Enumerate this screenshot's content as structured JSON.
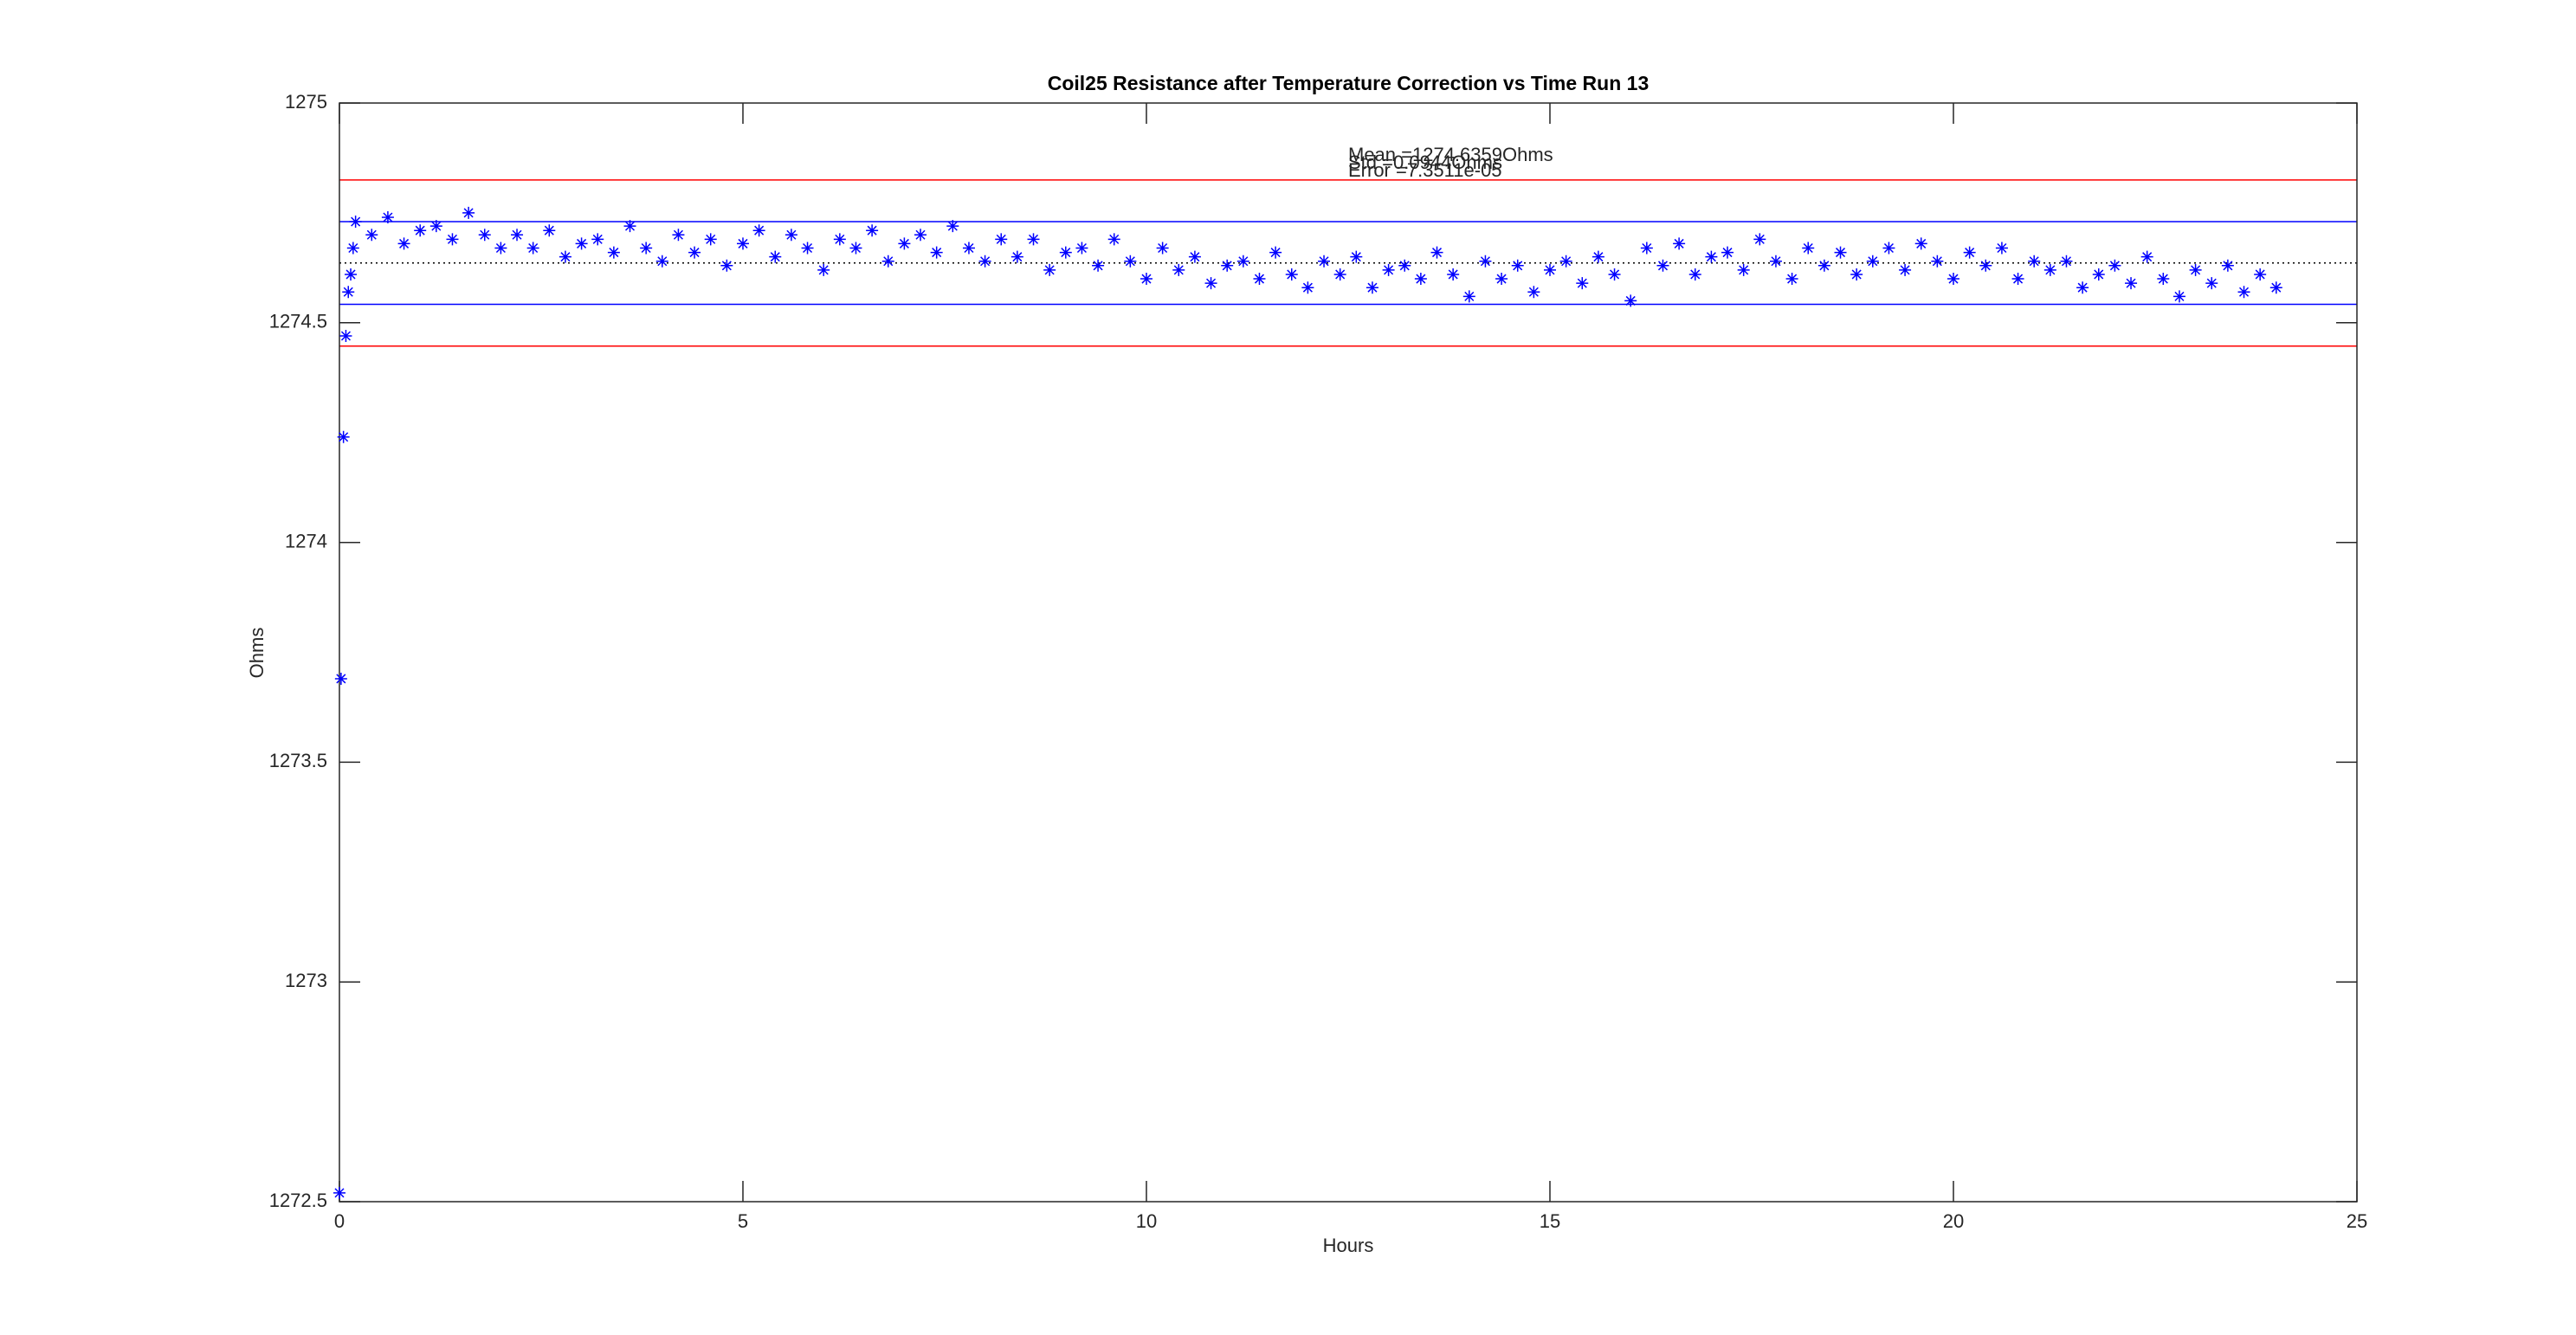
{
  "chart_data": {
    "type": "scatter",
    "title": "Coil25 Resistance after Temperature Correction vs Time Run 13",
    "xlabel": "Hours",
    "ylabel": "Ohms",
    "xlim": [
      0,
      25
    ],
    "xticks": [
      0,
      5,
      10,
      15,
      20,
      25
    ],
    "ylim": [
      1272.5,
      1275
    ],
    "yticks": [
      1272.5,
      1273,
      1273.5,
      1274,
      1274.5,
      1275
    ],
    "annotations": [
      "Mean =1274.6359Ohms",
      "Std =0.0944Ohms",
      "Error =7.3511e-05"
    ],
    "reference_lines": [
      {
        "value": 1274.825,
        "color": "#ff0000",
        "style": "solid"
      },
      {
        "value": 1274.73,
        "color": "#0000ff",
        "style": "solid"
      },
      {
        "value": 1274.636,
        "color": "#000000",
        "style": "dotted"
      },
      {
        "value": 1274.542,
        "color": "#0000ff",
        "style": "solid"
      },
      {
        "value": 1274.447,
        "color": "#ff0000",
        "style": "solid"
      }
    ],
    "series": [
      {
        "color": "#0000ff",
        "x": [
          0,
          0.02,
          0.05,
          0.08,
          0.11,
          0.14,
          0.17,
          0.2,
          0.4,
          0.6,
          0.8,
          1.0,
          1.2,
          1.4,
          1.6,
          1.8,
          2.0,
          2.2,
          2.4,
          2.6,
          2.8,
          3.0,
          3.2,
          3.4,
          3.6,
          3.8,
          4.0,
          4.2,
          4.4,
          4.6,
          4.8,
          5.0,
          5.2,
          5.4,
          5.6,
          5.8,
          6.0,
          6.2,
          6.4,
          6.6,
          6.8,
          7.0,
          7.2,
          7.4,
          7.6,
          7.8,
          8.0,
          8.2,
          8.4,
          8.6,
          8.8,
          9.0,
          9.2,
          9.4,
          9.6,
          9.8,
          10.0,
          10.2,
          10.4,
          10.6,
          10.8,
          11.0,
          11.2,
          11.4,
          11.6,
          11.8,
          12.0,
          12.2,
          12.4,
          12.6,
          12.8,
          13.0,
          13.2,
          13.4,
          13.6,
          13.8,
          14.0,
          14.2,
          14.4,
          14.6,
          14.8,
          15.0,
          15.2,
          15.4,
          15.6,
          15.8,
          16.0,
          16.2,
          16.4,
          16.6,
          16.8,
          17.0,
          17.2,
          17.4,
          17.6,
          17.8,
          18.0,
          18.2,
          18.4,
          18.6,
          18.8,
          19.0,
          19.2,
          19.4,
          19.6,
          19.8,
          20.0,
          20.2,
          20.4,
          20.6,
          20.8,
          21.0,
          21.2,
          21.4,
          21.6,
          21.8,
          22.0,
          22.2,
          22.4,
          22.6,
          22.8,
          23.0,
          23.2,
          23.4,
          23.6,
          23.8,
          24.0
        ],
        "values": [
          1272.52,
          1273.69,
          1274.24,
          1274.47,
          1274.57,
          1274.61,
          1274.67,
          1274.73,
          1274.7,
          1274.74,
          1274.68,
          1274.71,
          1274.72,
          1274.69,
          1274.75,
          1274.7,
          1274.67,
          1274.7,
          1274.67,
          1274.71,
          1274.65,
          1274.68,
          1274.69,
          1274.66,
          1274.72,
          1274.67,
          1274.64,
          1274.7,
          1274.66,
          1274.69,
          1274.63,
          1274.68,
          1274.71,
          1274.65,
          1274.7,
          1274.67,
          1274.62,
          1274.69,
          1274.67,
          1274.71,
          1274.64,
          1274.68,
          1274.7,
          1274.66,
          1274.72,
          1274.67,
          1274.64,
          1274.69,
          1274.65,
          1274.69,
          1274.62,
          1274.66,
          1274.67,
          1274.63,
          1274.69,
          1274.64,
          1274.6,
          1274.67,
          1274.62,
          1274.65,
          1274.59,
          1274.63,
          1274.64,
          1274.6,
          1274.66,
          1274.61,
          1274.58,
          1274.64,
          1274.61,
          1274.65,
          1274.58,
          1274.62,
          1274.63,
          1274.6,
          1274.66,
          1274.61,
          1274.56,
          1274.64,
          1274.6,
          1274.63,
          1274.57,
          1274.62,
          1274.64,
          1274.59,
          1274.65,
          1274.61,
          1274.55,
          1274.67,
          1274.63,
          1274.68,
          1274.61,
          1274.65,
          1274.66,
          1274.62,
          1274.69,
          1274.64,
          1274.6,
          1274.67,
          1274.63,
          1274.66,
          1274.61,
          1274.64,
          1274.67,
          1274.62,
          1274.68,
          1274.64,
          1274.6,
          1274.66,
          1274.63,
          1274.67,
          1274.6,
          1274.64,
          1274.62,
          1274.64,
          1274.58,
          1274.61,
          1274.63,
          1274.59,
          1274.65,
          1274.6,
          1274.56,
          1274.62,
          1274.59,
          1274.63,
          1274.57,
          1274.61,
          1274.58
        ]
      }
    ]
  }
}
